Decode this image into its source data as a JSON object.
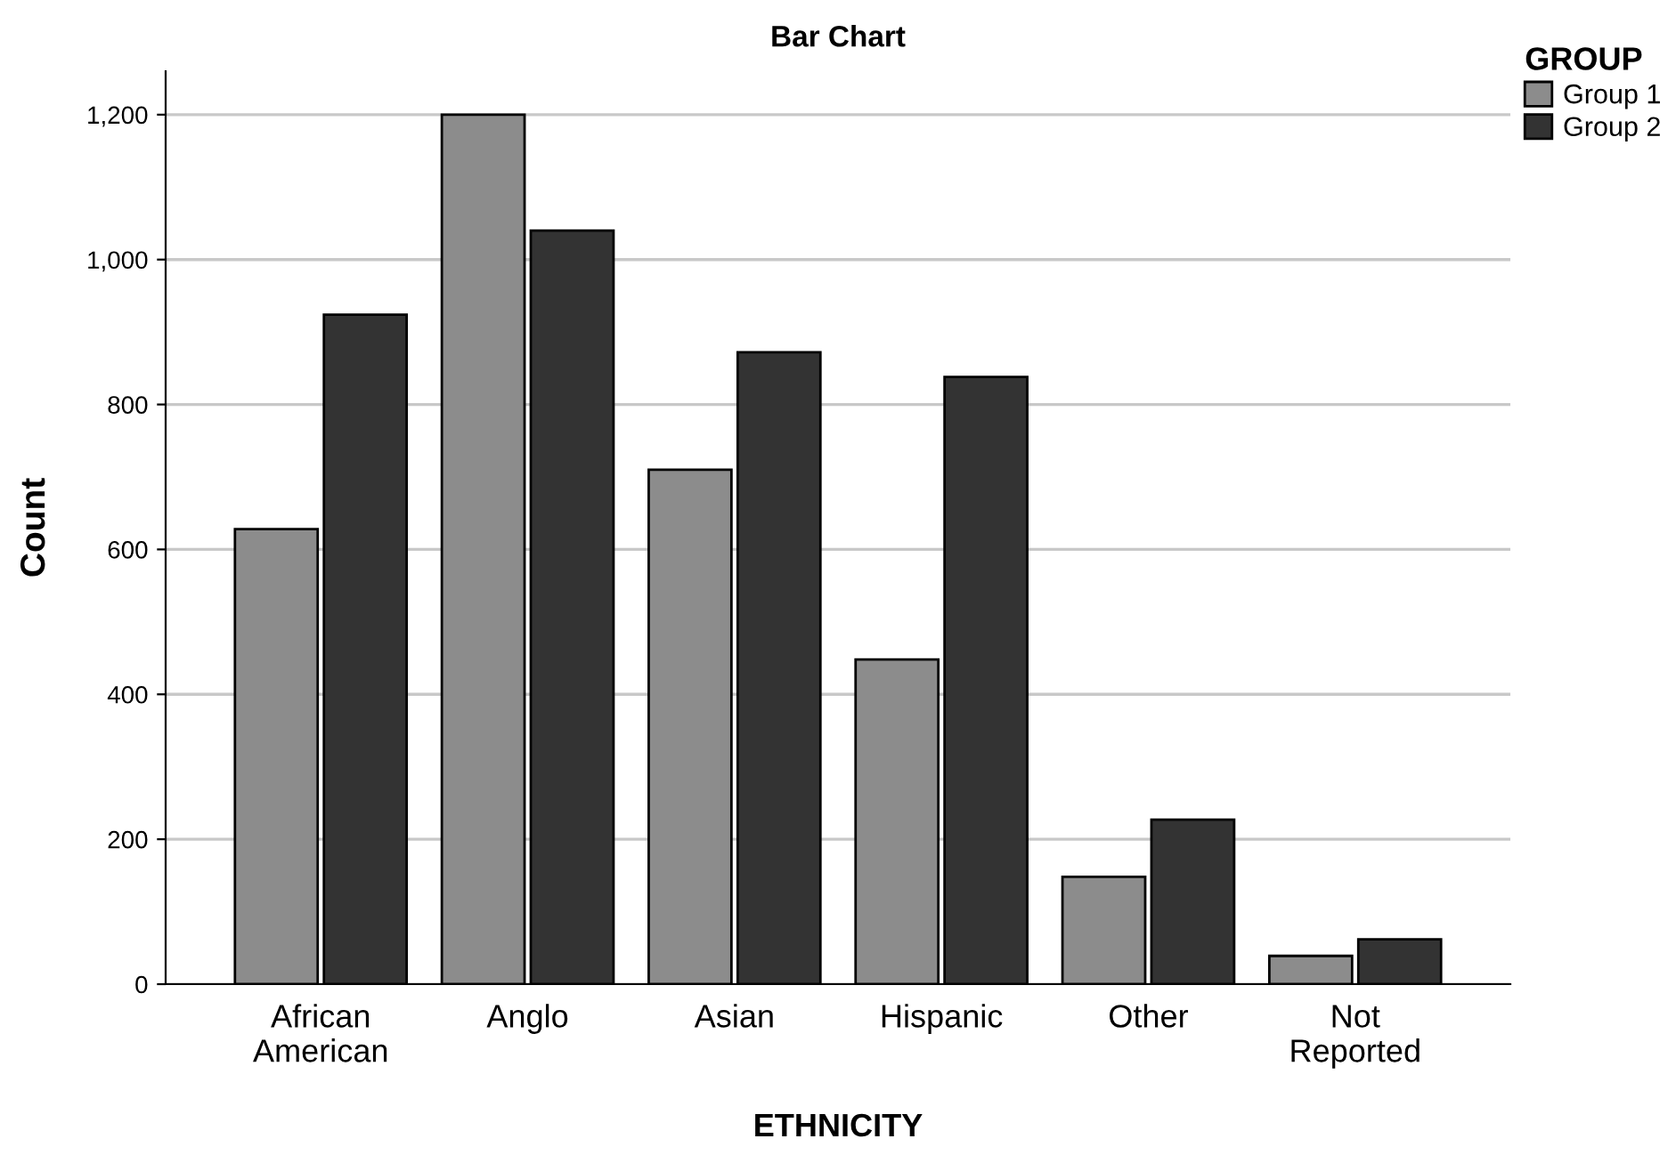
{
  "chart_data": {
    "type": "bar",
    "title": "Bar Chart",
    "xlabel": "ETHNICITY",
    "ylabel": "Count",
    "legend_title": "GROUP",
    "categories": [
      "African\nAmerican",
      "Anglo",
      "Asian",
      "Hispanic",
      "Other",
      "Not\nReported"
    ],
    "series": [
      {
        "name": "Group 1",
        "color": "#8c8c8c",
        "values": [
          628,
          1200,
          710,
          448,
          148,
          39
        ]
      },
      {
        "name": "Group 2",
        "color": "#333333",
        "values": [
          924,
          1040,
          872,
          838,
          227,
          62
        ]
      }
    ],
    "ylim": [
      0,
      1260
    ],
    "yticks": [
      0,
      {
        "value": 200,
        "label": "200"
      },
      {
        "value": 400,
        "label": "400"
      },
      {
        "value": 600,
        "label": "600"
      },
      {
        "value": 800,
        "label": "800"
      },
      {
        "value": 1000,
        "label": "1,000"
      },
      {
        "value": 1200,
        "label": "1,200"
      }
    ],
    "grid": "y",
    "legend": "top right"
  }
}
